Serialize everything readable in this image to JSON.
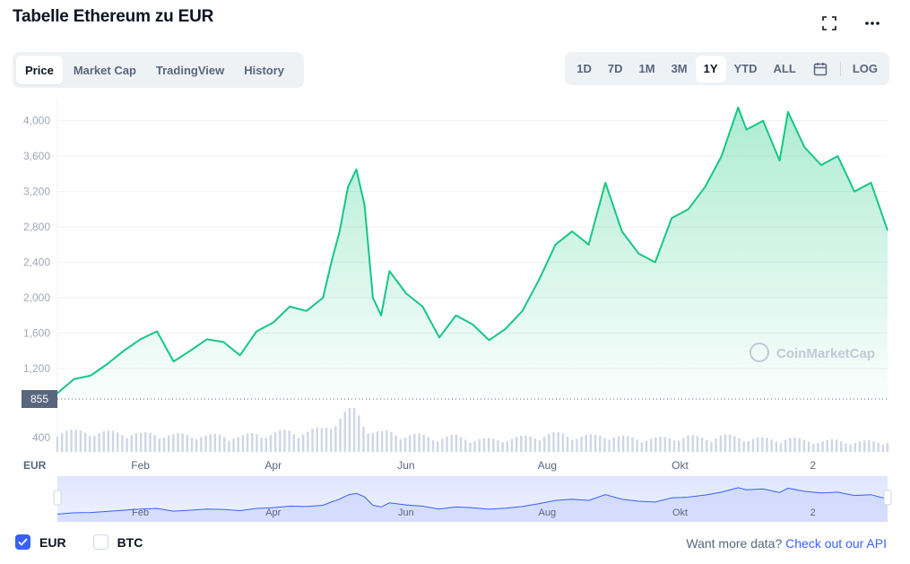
{
  "header": {
    "title": "Tabelle Ethereum zu EUR",
    "expand_icon": "fullscreen-icon",
    "more_icon": "more-horizontal-icon"
  },
  "tabs": [
    {
      "label": "Price",
      "active": true
    },
    {
      "label": "Market Cap",
      "active": false
    },
    {
      "label": "TradingView",
      "active": false
    },
    {
      "label": "History",
      "active": false
    }
  ],
  "ranges": [
    {
      "label": "1D",
      "active": false
    },
    {
      "label": "7D",
      "active": false
    },
    {
      "label": "1M",
      "active": false
    },
    {
      "label": "3M",
      "active": false
    },
    {
      "label": "1Y",
      "active": true
    },
    {
      "label": "YTD",
      "active": false
    },
    {
      "label": "ALL",
      "active": false
    }
  ],
  "calendar_icon": "calendar-icon",
  "log_label": "LOG",
  "chart_data": {
    "type": "area",
    "currency_label": "EUR",
    "watermark": "CoinMarketCap",
    "current_price_label": "855",
    "colors": {
      "line": "#16c784",
      "accent": "#3861fb",
      "navigator": "#c7d2fe"
    },
    "ylim": [
      855,
      4250
    ],
    "yticks": [
      1200,
      1600,
      2000,
      2400,
      2800,
      3200,
      3600,
      4000
    ],
    "ytick_labels": [
      "1,200",
      "1,600",
      "2,000",
      "2,400",
      "2,800",
      "3,200",
      "3,600",
      "4,000"
    ],
    "volume_tick_label": "400",
    "xticks": [
      {
        "label": "Feb",
        "x": 0.1
      },
      {
        "label": "Apr",
        "x": 0.26
      },
      {
        "label": "Jun",
        "x": 0.42
      },
      {
        "label": "Aug",
        "x": 0.59
      },
      {
        "label": "Okt",
        "x": 0.75
      },
      {
        "label": "2",
        "x": 0.91
      }
    ],
    "x": [
      0.0,
      0.02,
      0.04,
      0.06,
      0.08,
      0.1,
      0.12,
      0.14,
      0.16,
      0.18,
      0.2,
      0.22,
      0.24,
      0.26,
      0.28,
      0.3,
      0.32,
      0.33,
      0.34,
      0.35,
      0.36,
      0.37,
      0.38,
      0.39,
      0.4,
      0.42,
      0.44,
      0.46,
      0.48,
      0.5,
      0.52,
      0.54,
      0.56,
      0.58,
      0.6,
      0.62,
      0.64,
      0.66,
      0.68,
      0.7,
      0.72,
      0.74,
      0.76,
      0.78,
      0.8,
      0.82,
      0.83,
      0.85,
      0.87,
      0.88,
      0.9,
      0.92,
      0.94,
      0.96,
      0.98,
      1.0
    ],
    "series": [
      {
        "values": [
          920,
          1080,
          1120,
          1250,
          1400,
          1530,
          1620,
          1280,
          1400,
          1530,
          1500,
          1350,
          1620,
          1720,
          1900,
          1850,
          2000,
          2400,
          2750,
          3250,
          3450,
          3050,
          2000,
          1800,
          2300,
          2050,
          1900,
          1550,
          1800,
          1700,
          1520,
          1650,
          1850,
          2200,
          2600,
          2750,
          2600,
          3300,
          2750,
          2500,
          2400,
          2900,
          3000,
          3250,
          3600,
          4150,
          3900,
          4000,
          3550,
          4100,
          3700,
          3500,
          3600,
          3200,
          3300,
          2760
        ],
        "volume": [
          280,
          240,
          260,
          230,
          250,
          210,
          230,
          200,
          220,
          190,
          210,
          180,
          230,
          220,
          260,
          240,
          280,
          380,
          420,
          480,
          500,
          360,
          260,
          230,
          240,
          210,
          200,
          170,
          190,
          160,
          150,
          160,
          180,
          200,
          220,
          200,
          190,
          210,
          180,
          170,
          160,
          180,
          190,
          170,
          200,
          180,
          170,
          160,
          150,
          170,
          140,
          130,
          140,
          120,
          130,
          130
        ]
      }
    ]
  },
  "legend": {
    "eur_label": "EUR",
    "btc_label": "BTC",
    "eur_checked": true,
    "btc_checked": false
  },
  "footer": {
    "text": "Want more data?",
    "link": "Check out our API"
  }
}
